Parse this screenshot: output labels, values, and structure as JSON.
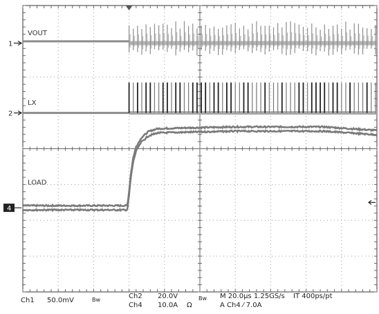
{
  "chart_data": {
    "type": "line",
    "title": "",
    "grid": true,
    "grid_divisions": {
      "x": 10,
      "y": 8
    },
    "x_range_div": [
      0,
      10
    ],
    "y_range_div": [
      -4,
      4
    ],
    "channels": [
      {
        "id": "1",
        "label": "VOUT",
        "marker": "1",
        "marker_style": "arrow",
        "ground_div": 2.95,
        "scale": "50.0mV",
        "bandwidth_limit": "Bw",
        "color": "#8c8c8c",
        "segments": [
          {
            "t_div": [
              0,
              3.0
            ],
            "level_div": 3.0,
            "shape": "flat"
          },
          {
            "t_div": [
              3.0,
              10
            ],
            "level_div": 2.95,
            "shape": "ringing",
            "spike_up_div": 0.5,
            "spike_down_div": 0.25,
            "period_div": 0.12
          }
        ]
      },
      {
        "id": "2",
        "label": "LX",
        "marker": "2",
        "marker_style": "arrow",
        "ground_div": 1.0,
        "scale": "20.0V",
        "bandwidth_limit": "Bw",
        "color": "#8c8c8c",
        "segments": [
          {
            "t_div": [
              0,
              3.0
            ],
            "level_div": 1.0,
            "shape": "flat"
          },
          {
            "t_div": [
              3.0,
              10
            ],
            "level_div": 1.0,
            "shape": "switching",
            "pulse_height_div": 0.85,
            "period_div": 0.12
          }
        ]
      },
      {
        "id": "4",
        "label": "LOAD",
        "marker": "4",
        "marker_style": "box",
        "ground_div": -1.65,
        "scale": "10.0A",
        "unit": "Ω",
        "color": "#7a7a7a",
        "points": [
          [
            0,
            -1.65
          ],
          [
            2.95,
            -1.65
          ],
          [
            3.0,
            -1.25
          ],
          [
            3.05,
            -0.75
          ],
          [
            3.12,
            -0.3
          ],
          [
            3.2,
            0.0
          ],
          [
            3.35,
            0.25
          ],
          [
            3.55,
            0.42
          ],
          [
            3.8,
            0.5
          ],
          [
            4.5,
            0.52
          ],
          [
            6.0,
            0.55
          ],
          [
            8.5,
            0.55
          ],
          [
            10.0,
            0.45
          ]
        ]
      }
    ]
  },
  "readout": {
    "ch1": "Ch1",
    "ch1_scale": "50.0mV",
    "ch1_bw": "Bw",
    "ch2": "Ch2",
    "ch2_scale": "20.0V",
    "ch2_bw": "Bw",
    "ch4": "Ch4",
    "ch4_scale": "10.0A",
    "ch4_unit": "Ω",
    "timebase": "M 20.0µs 1.25GS/s",
    "record": "IT 400ps/pt",
    "trigger": "A  Ch4  ⁄  7.0A"
  },
  "trigger_position_div": 3.0,
  "trigger_level_div": -1.5
}
